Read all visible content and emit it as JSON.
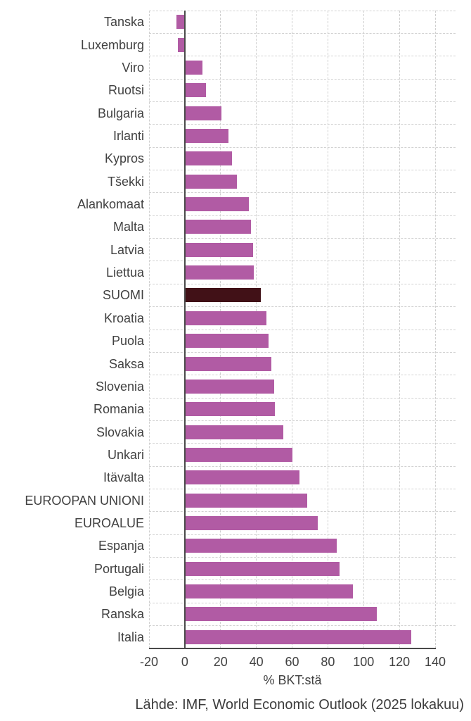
{
  "chart_data": {
    "type": "bar",
    "orientation": "horizontal",
    "title": "",
    "xlabel": "% BKT:stä",
    "xlim": [
      -20,
      140
    ],
    "xticks": [
      -20,
      0,
      20,
      40,
      60,
      80,
      100,
      120,
      140
    ],
    "xtick_labels": [
      "-20",
      "0",
      "20",
      "40",
      "60",
      "80",
      "100",
      "120",
      "140"
    ],
    "grid": true,
    "legend": "none",
    "categories": [
      "Tanska",
      "Luxemburg",
      "Viro",
      "Ruotsi",
      "Bulgaria",
      "Irlanti",
      "Kypros",
      "Tšekki",
      "Alankomaat",
      "Malta",
      "Latvia",
      "Liettua",
      "SUOMI",
      "Kroatia",
      "Puola",
      "Saksa",
      "Slovenia",
      "Romania",
      "Slovakia",
      "Unkari",
      "Itävalta",
      "EUROOPAN UNIONI",
      "EUROALUE",
      "Espanja",
      "Portugali",
      "Belgia",
      "Ranska",
      "Italia"
    ],
    "values": [
      -4.5,
      -4,
      10,
      12,
      20.5,
      24.5,
      26.5,
      29,
      36,
      37,
      38,
      38.5,
      42.5,
      45.5,
      47,
      48.5,
      50,
      50.5,
      55,
      60,
      64,
      68.5,
      74.5,
      85,
      86.5,
      94,
      107.5,
      126.5
    ],
    "highlight_category": "SUOMI",
    "bar_color": "#b15ba4",
    "highlight_color": "#411117",
    "source": "Lähde: IMF, World Economic Outlook (2025 lokakuu)"
  }
}
